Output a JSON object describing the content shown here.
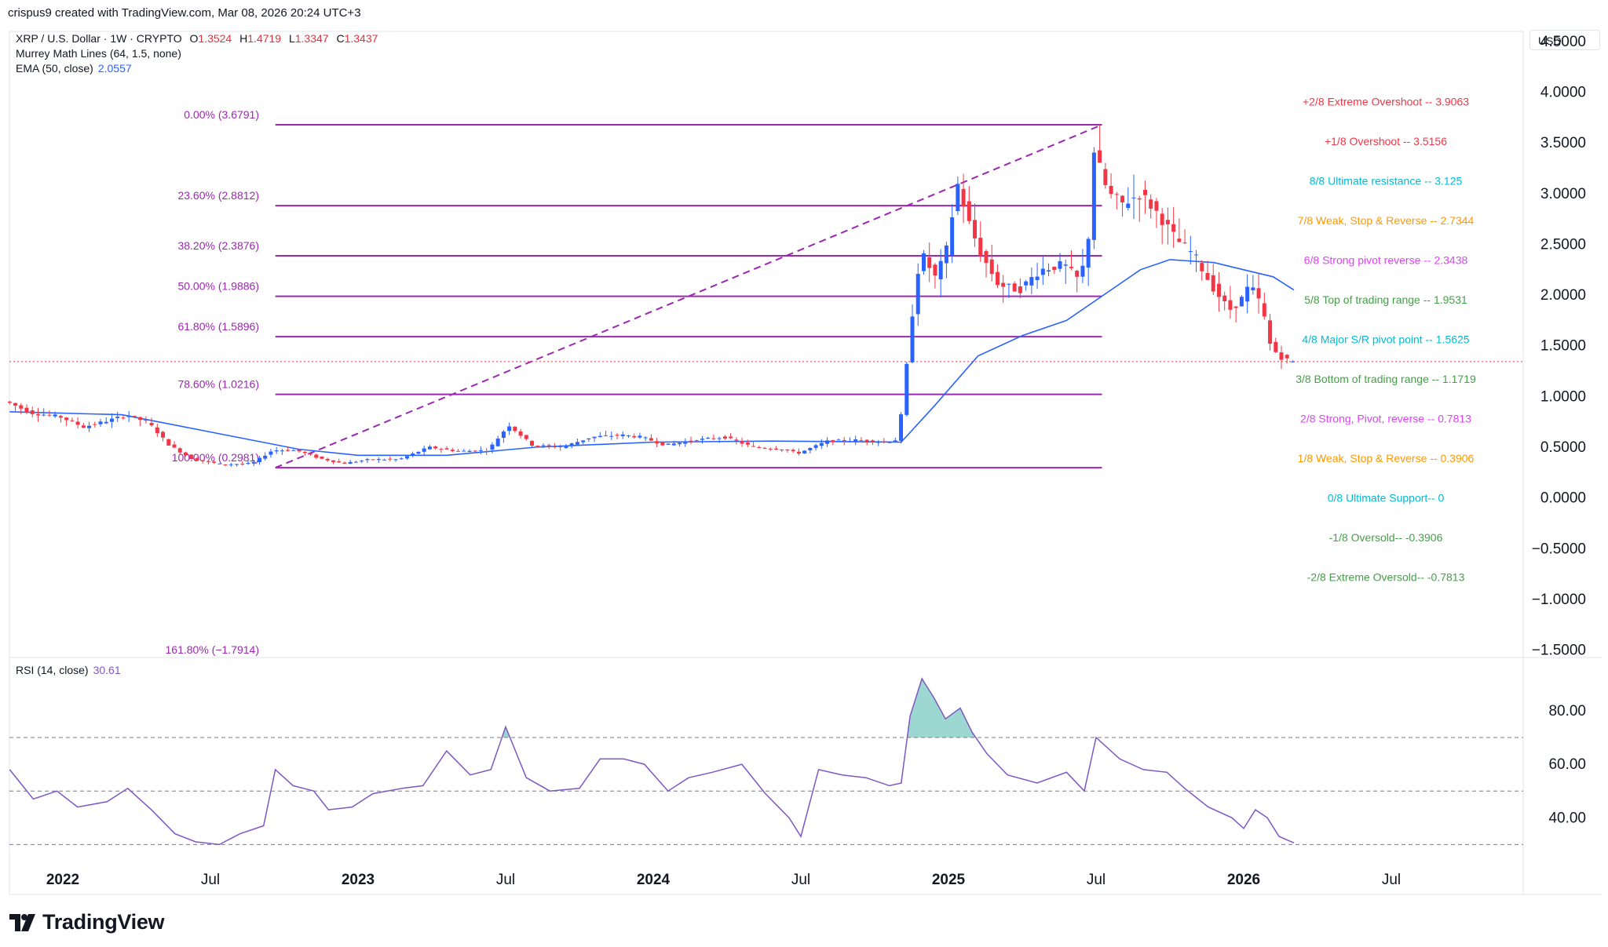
{
  "header": {
    "credit": "crispus9 created with TradingView.com, Mar 08, 2026 20:24 UTC+3"
  },
  "legend": {
    "symbol": "XRP / U.S. Dollar · 1W · CRYPTO",
    "open_label": "O",
    "open": "1.3524",
    "high_label": "H",
    "high": "1.4719",
    "low_label": "L",
    "low": "1.3347",
    "close_label": "C",
    "close": "1.3437",
    "murrey": "Murrey Math Lines (64, 1.5, none)",
    "ema_label": "EMA (50, close)",
    "ema_value": "2.0557"
  },
  "currency_button": "USD",
  "rsi_legend": {
    "label": "RSI (14, close)",
    "value": "30.61"
  },
  "brand": {
    "name": "TradingView",
    "logo_icon": "tradingview-logo-icon"
  },
  "colors": {
    "up": "#2962ff",
    "down": "#f23645",
    "fib": "#9c27b0",
    "ema": "#2962ff",
    "rsi": "#7e57c2",
    "grid": "#f0f3fa",
    "axis_text": "#131722"
  },
  "chart_data": [
    {
      "type": "candlestick",
      "title": "XRP / U.S. Dollar · 1W · CRYPTO",
      "ylim": [
        -1.55,
        4.6
      ],
      "y_ticks": [
        "4.5000",
        "4.0000",
        "3.5000",
        "3.0000",
        "2.5000",
        "2.0000",
        "1.5000",
        "1.0000",
        "0.5000",
        "0.0000",
        "−0.5000",
        "−1.0000",
        "−1.5000"
      ],
      "y_tick_values": [
        4.5,
        4.0,
        3.5,
        3.0,
        2.5,
        2.0,
        1.5,
        1.0,
        0.5,
        0.0,
        -0.5,
        -1.0,
        -1.5
      ],
      "x_ticks": [
        {
          "label": "2022",
          "year": 2022.0,
          "bold": true
        },
        {
          "label": "Jul",
          "year": 2022.5,
          "bold": false
        },
        {
          "label": "2023",
          "year": 2023.0,
          "bold": true
        },
        {
          "label": "Jul",
          "year": 2023.5,
          "bold": false
        },
        {
          "label": "2024",
          "year": 2024.0,
          "bold": true
        },
        {
          "label": "Jul",
          "year": 2024.5,
          "bold": false
        },
        {
          "label": "2025",
          "year": 2025.0,
          "bold": true
        },
        {
          "label": "Jul",
          "year": 2025.5,
          "bold": false
        },
        {
          "label": "2026",
          "year": 2026.0,
          "bold": true
        },
        {
          "label": "Jul",
          "year": 2026.5,
          "bold": false
        }
      ],
      "price_path": [
        [
          2021.82,
          0.95
        ],
        [
          2021.9,
          0.84
        ],
        [
          2022.0,
          0.8
        ],
        [
          2022.08,
          0.7
        ],
        [
          2022.16,
          0.76
        ],
        [
          2022.23,
          0.82
        ],
        [
          2022.3,
          0.74
        ],
        [
          2022.37,
          0.52
        ],
        [
          2022.45,
          0.38
        ],
        [
          2022.55,
          0.33
        ],
        [
          2022.65,
          0.34
        ],
        [
          2022.72,
          0.47
        ],
        [
          2022.8,
          0.47
        ],
        [
          2022.88,
          0.39
        ],
        [
          2022.96,
          0.34
        ],
        [
          2023.05,
          0.38
        ],
        [
          2023.15,
          0.38
        ],
        [
          2023.25,
          0.5
        ],
        [
          2023.35,
          0.46
        ],
        [
          2023.45,
          0.47
        ],
        [
          2023.52,
          0.72
        ],
        [
          2023.6,
          0.52
        ],
        [
          2023.7,
          0.5
        ],
        [
          2023.8,
          0.6
        ],
        [
          2023.9,
          0.62
        ],
        [
          2023.97,
          0.6
        ],
        [
          2024.05,
          0.52
        ],
        [
          2024.15,
          0.57
        ],
        [
          2024.25,
          0.6
        ],
        [
          2024.35,
          0.5
        ],
        [
          2024.45,
          0.48
        ],
        [
          2024.5,
          0.44
        ],
        [
          2024.6,
          0.56
        ],
        [
          2024.7,
          0.57
        ],
        [
          2024.8,
          0.55
        ],
        [
          2024.84,
          0.58
        ],
        [
          2024.86,
          1.1
        ],
        [
          2024.88,
          1.6
        ],
        [
          2024.9,
          2.2
        ],
        [
          2024.93,
          2.4
        ],
        [
          2024.96,
          2.15
        ],
        [
          2025.0,
          2.4
        ],
        [
          2025.04,
          3.1
        ],
        [
          2025.08,
          2.7
        ],
        [
          2025.12,
          2.4
        ],
        [
          2025.18,
          2.1
        ],
        [
          2025.25,
          2.05
        ],
        [
          2025.32,
          2.25
        ],
        [
          2025.4,
          2.3
        ],
        [
          2025.45,
          2.15
        ],
        [
          2025.48,
          2.4
        ],
        [
          2025.5,
          3.45
        ],
        [
          2025.55,
          3.0
        ],
        [
          2025.6,
          2.9
        ],
        [
          2025.66,
          3.0
        ],
        [
          2025.72,
          2.8
        ],
        [
          2025.78,
          2.55
        ],
        [
          2025.84,
          2.4
        ],
        [
          2025.9,
          2.1
        ],
        [
          2025.96,
          1.85
        ],
        [
          2026.0,
          1.95
        ],
        [
          2026.03,
          2.1
        ],
        [
          2026.07,
          1.9
        ],
        [
          2026.1,
          1.5
        ],
        [
          2026.13,
          1.4
        ],
        [
          2026.17,
          1.34
        ]
      ],
      "fibonacci": {
        "start_year": 2022.72,
        "end_year": 2025.52,
        "levels": [
          {
            "label": "0.00% (3.6791)",
            "value": 3.6791
          },
          {
            "label": "23.60% (2.8812)",
            "value": 2.8812
          },
          {
            "label": "38.20% (2.3876)",
            "value": 2.3876
          },
          {
            "label": "50.00% (1.9886)",
            "value": 1.9886
          },
          {
            "label": "61.80% (1.5896)",
            "value": 1.5896
          },
          {
            "label": "78.60% (1.0216)",
            "value": 1.0216
          },
          {
            "label": "100.00% (0.2981)",
            "value": 0.2981
          },
          {
            "label": "161.80% (−1.7914)",
            "value": -1.7914
          }
        ]
      },
      "murrey_lines": [
        {
          "label": "+2/8 Extreme Overshoot --  3.9063",
          "value": 3.9063,
          "color": "#f23645"
        },
        {
          "label": "+1/8 Overshoot --  3.5156",
          "value": 3.5156,
          "color": "#f23645"
        },
        {
          "label": "8/8 Ultimate resistance --  3.125",
          "value": 3.125,
          "color": "#00bcd4"
        },
        {
          "label": "7/8 Weak, Stop & Reverse --  2.7344",
          "value": 2.7344,
          "color": "#ff9800"
        },
        {
          "label": "6/8 Strong pivot reverse --  2.3438",
          "value": 2.3438,
          "color": "#e040fb"
        },
        {
          "label": "5/8 Top of trading range --  1.9531",
          "value": 1.9531,
          "color": "#43a047"
        },
        {
          "label": "4/8 Major S/R pivot point --  1.5625",
          "value": 1.5625,
          "color": "#00bcd4"
        },
        {
          "label": "3/8 Bottom of trading range --  1.1719",
          "value": 1.1719,
          "color": "#43a047"
        },
        {
          "label": "2/8 Strong, Pivot, reverse --  0.7813",
          "value": 0.7813,
          "color": "#e040fb"
        },
        {
          "label": "1/8 Weak, Stop & Reverse --  0.3906",
          "value": 0.3906,
          "color": "#ff9800"
        },
        {
          "label": "0/8 Ultimate Support--  0",
          "value": 0,
          "color": "#00bcd4"
        },
        {
          "label": "-1/8 Oversold--  -0.3906",
          "value": -0.3906,
          "color": "#43a047"
        },
        {
          "label": "-2/8 Extreme Oversold--  -0.7813",
          "value": -0.7813,
          "color": "#43a047"
        }
      ],
      "ema": {
        "name": "EMA (50, close)",
        "points": [
          [
            2021.82,
            0.85
          ],
          [
            2022.2,
            0.82
          ],
          [
            2022.5,
            0.65
          ],
          [
            2022.8,
            0.48
          ],
          [
            2023.0,
            0.42
          ],
          [
            2023.3,
            0.42
          ],
          [
            2023.6,
            0.5
          ],
          [
            2024.0,
            0.55
          ],
          [
            2024.4,
            0.56
          ],
          [
            2024.84,
            0.55
          ],
          [
            2024.95,
            0.9
          ],
          [
            2025.1,
            1.4
          ],
          [
            2025.25,
            1.6
          ],
          [
            2025.4,
            1.75
          ],
          [
            2025.5,
            1.95
          ],
          [
            2025.65,
            2.25
          ],
          [
            2025.75,
            2.35
          ],
          [
            2025.9,
            2.32
          ],
          [
            2026.0,
            2.25
          ],
          [
            2026.1,
            2.18
          ],
          [
            2026.17,
            2.05
          ]
        ]
      },
      "current_price": 1.3437
    },
    {
      "type": "line",
      "title": "RSI (14, close)",
      "ylim": [
        26,
        97
      ],
      "y_ticks": [
        "80.00",
        "60.00",
        "40.00"
      ],
      "y_tick_values": [
        80,
        60,
        40
      ],
      "bands": [
        70,
        50,
        30
      ],
      "series": [
        {
          "name": "RSI (14, close)",
          "points": [
            [
              2021.82,
              58
            ],
            [
              2021.9,
              47
            ],
            [
              2021.98,
              50
            ],
            [
              2022.05,
              44
            ],
            [
              2022.15,
              46
            ],
            [
              2022.22,
              51
            ],
            [
              2022.3,
              43
            ],
            [
              2022.38,
              34
            ],
            [
              2022.45,
              31
            ],
            [
              2022.53,
              30
            ],
            [
              2022.6,
              34
            ],
            [
              2022.68,
              37
            ],
            [
              2022.72,
              58
            ],
            [
              2022.78,
              52
            ],
            [
              2022.85,
              50
            ],
            [
              2022.9,
              43
            ],
            [
              2022.98,
              44
            ],
            [
              2023.05,
              49
            ],
            [
              2023.15,
              51
            ],
            [
              2023.22,
              52
            ],
            [
              2023.3,
              65
            ],
            [
              2023.38,
              56
            ],
            [
              2023.45,
              58
            ],
            [
              2023.5,
              74
            ],
            [
              2023.57,
              55
            ],
            [
              2023.65,
              50
            ],
            [
              2023.75,
              51
            ],
            [
              2023.82,
              62
            ],
            [
              2023.9,
              62
            ],
            [
              2023.97,
              60
            ],
            [
              2024.05,
              50
            ],
            [
              2024.12,
              55
            ],
            [
              2024.2,
              57
            ],
            [
              2024.3,
              60
            ],
            [
              2024.38,
              49
            ],
            [
              2024.46,
              40
            ],
            [
              2024.5,
              33
            ],
            [
              2024.56,
              58
            ],
            [
              2024.64,
              56
            ],
            [
              2024.72,
              55
            ],
            [
              2024.8,
              52
            ],
            [
              2024.84,
              53
            ],
            [
              2024.87,
              78
            ],
            [
              2024.91,
              92
            ],
            [
              2024.95,
              85
            ],
            [
              2024.99,
              77
            ],
            [
              2025.04,
              81
            ],
            [
              2025.08,
              72
            ],
            [
              2025.13,
              64
            ],
            [
              2025.2,
              56
            ],
            [
              2025.3,
              53
            ],
            [
              2025.4,
              57
            ],
            [
              2025.46,
              50
            ],
            [
              2025.5,
              70
            ],
            [
              2025.58,
              62
            ],
            [
              2025.66,
              58
            ],
            [
              2025.74,
              57
            ],
            [
              2025.8,
              51
            ],
            [
              2025.88,
              44
            ],
            [
              2025.96,
              40
            ],
            [
              2026.0,
              36
            ],
            [
              2026.04,
              43
            ],
            [
              2026.08,
              40
            ],
            [
              2026.12,
              33
            ],
            [
              2026.17,
              30.61
            ]
          ]
        }
      ]
    }
  ]
}
